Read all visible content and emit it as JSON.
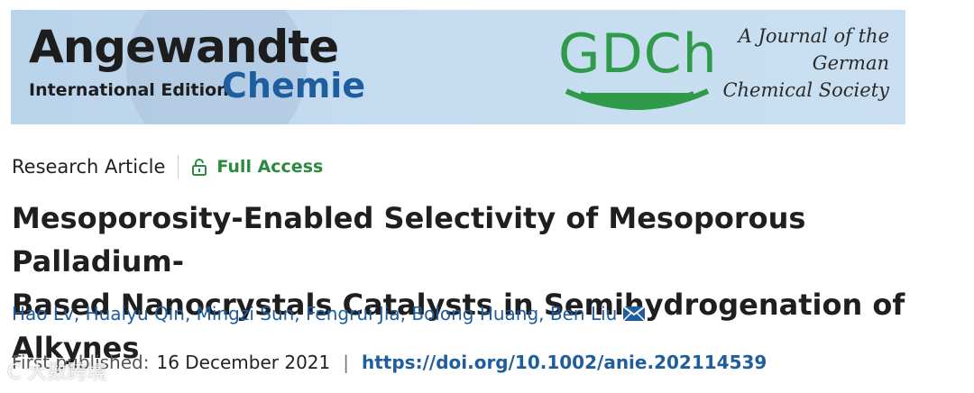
{
  "banner": {
    "journal_line1": "Angewandte",
    "journal_edition": "International Edition",
    "journal_line2": "Chemie",
    "society_logo": "GDCh",
    "society_tagline": [
      "A Journal of the",
      "German",
      "Chemical Society"
    ]
  },
  "article": {
    "type": "Research Article",
    "access_label": "Full Access",
    "access_icon": "lock-open-icon",
    "title_line1": "Mesoporosity-Enabled Selectivity of Mesoporous Palladium-",
    "title_line2": "Based Nanocrystals Catalysts in Semihydrogenation of Alkynes",
    "authors": "Hao Lv, Huaiyu Qin, Mingzi Sun, Fengrui Jia, Bolong Huang, Ben Liu",
    "corresponding_icon": "mail-icon",
    "published_label": "First published:",
    "published_date": "16 December 2021",
    "separator": "|",
    "doi": "https://doi.org/10.1002/anie.202114539"
  },
  "watermark": "C 大数跨境",
  "colors": {
    "banner_bg": "#c5dcf0",
    "chemie_blue": "#1f5e9e",
    "gdch_green": "#2f9a4a",
    "access_green": "#2b8a3e",
    "link_blue": "#1f5e9e"
  }
}
